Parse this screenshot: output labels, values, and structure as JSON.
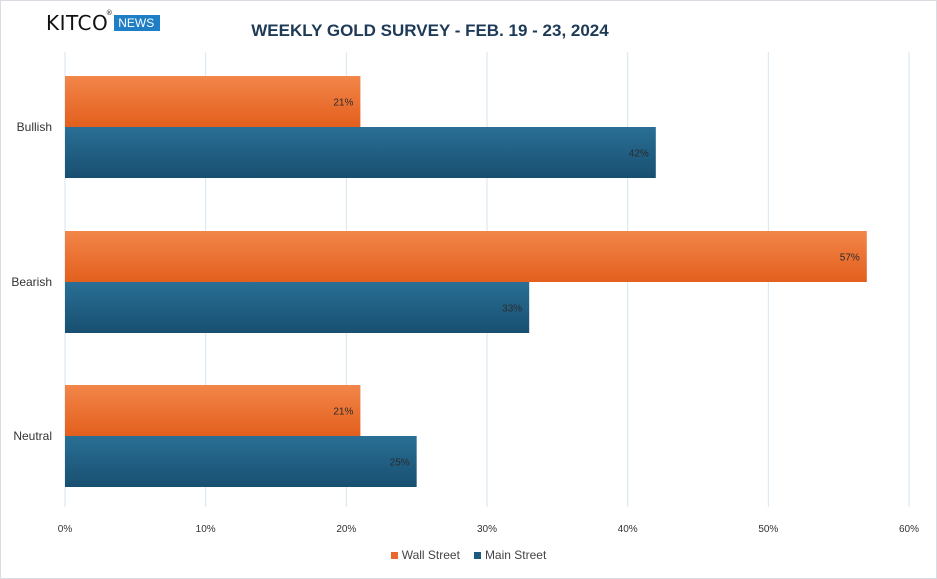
{
  "brand": {
    "name": "KITCO",
    "tag": "NEWS",
    "reg": "®"
  },
  "colors": {
    "wall_street": "#e8692c",
    "main_street": "#1e5a7d",
    "grid": "#d6e6ef",
    "axis_text": "#333333"
  },
  "chart_data": {
    "type": "bar",
    "orientation": "horizontal",
    "title": "WEEKLY GOLD SURVEY - FEB. 19 - 23, 2024",
    "categories": [
      "Bullish",
      "Bearish",
      "Neutral"
    ],
    "series": [
      {
        "name": "Wall Street",
        "values": [
          21,
          57,
          21
        ],
        "labels": [
          "21%",
          "57%",
          "21%"
        ]
      },
      {
        "name": "Main Street",
        "values": [
          42,
          33,
          25
        ],
        "labels": [
          "42%",
          "33%",
          "25%"
        ]
      }
    ],
    "xlim": [
      0,
      60
    ],
    "xticks": [
      0,
      10,
      20,
      30,
      40,
      50,
      60
    ],
    "xtick_labels": [
      "0%",
      "10%",
      "20%",
      "30%",
      "40%",
      "50%",
      "60%"
    ],
    "grid": true,
    "legend_position": "bottom"
  }
}
